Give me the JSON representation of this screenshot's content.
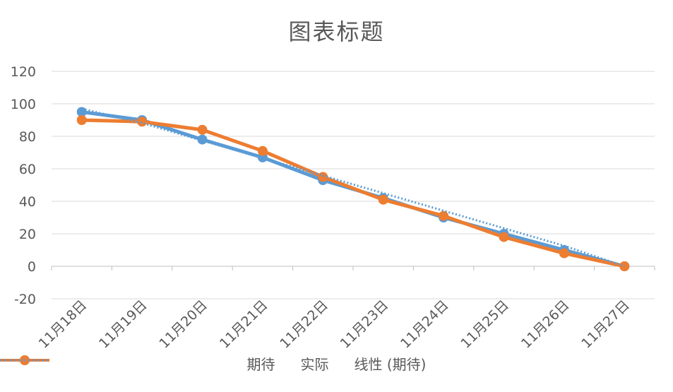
{
  "chart_data": {
    "type": "line",
    "title": "图表标题",
    "categories": [
      "11月18日",
      "11月19日",
      "11月20日",
      "11月21日",
      "11月22日",
      "11月23日",
      "11月24日",
      "11月25日",
      "11月26日",
      "11月27日"
    ],
    "ylim": [
      -20,
      120
    ],
    "yticks": [
      "120",
      "100",
      "80",
      "60",
      "40",
      "20",
      "0",
      "-20"
    ],
    "grid": true,
    "legend_position": "bottom",
    "series": [
      {
        "name": "期待",
        "values": [
          95,
          90,
          78,
          67,
          53,
          42,
          30,
          20,
          10,
          0
        ],
        "color": "#5b9bd5",
        "style": "line-marker"
      },
      {
        "name": "实际",
        "values": [
          90,
          89,
          84,
          71,
          55,
          41,
          31,
          18,
          8,
          0
        ],
        "color": "#ed7d31",
        "style": "line-marker"
      },
      {
        "name": "线性 (期待)",
        "values": [
          97,
          88.2,
          77.4,
          66.6,
          55.8,
          45,
          34.2,
          23.4,
          12.6,
          0
        ],
        "color": "#5b9bd5",
        "style": "dotted"
      }
    ]
  }
}
